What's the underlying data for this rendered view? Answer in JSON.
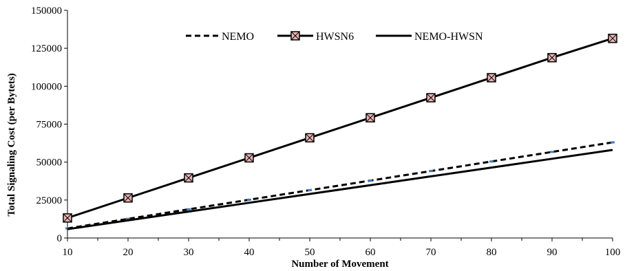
{
  "chart_data": {
    "type": "line",
    "title": "",
    "xlabel": "Number of  Movement",
    "ylabel": "Total Signaling Cost (per Bytets)",
    "x": [
      10,
      20,
      30,
      40,
      50,
      60,
      70,
      80,
      90,
      100
    ],
    "xlim": [
      10,
      100
    ],
    "ylim": [
      0,
      150000
    ],
    "xticks": [
      "10",
      "20",
      "30",
      "40",
      "50",
      "60",
      "70",
      "80",
      "90",
      "100"
    ],
    "yticks": [
      "0",
      "25000",
      "50000",
      "75000",
      "100000",
      "125000",
      "150000"
    ],
    "grid": false,
    "legend_position": "top",
    "series": [
      {
        "name": "NEMO",
        "style": "dashed",
        "color": "#000000",
        "marker_color": "#4a7ab0",
        "values": [
          6300,
          12600,
          18900,
          25200,
          31500,
          37800,
          44100,
          50400,
          56700,
          63000
        ]
      },
      {
        "name": "HWSN6",
        "style": "solid-marker",
        "color": "#000000",
        "marker_fill": "#e8b4b4",
        "values": [
          13200,
          26400,
          39600,
          52800,
          66000,
          79200,
          92400,
          105600,
          118800,
          131500
        ]
      },
      {
        "name": "NEMO-HWSN",
        "style": "solid",
        "color": "#000000",
        "values": [
          5800,
          11600,
          17400,
          23200,
          29000,
          34800,
          40600,
          46400,
          52200,
          58000
        ]
      }
    ]
  }
}
